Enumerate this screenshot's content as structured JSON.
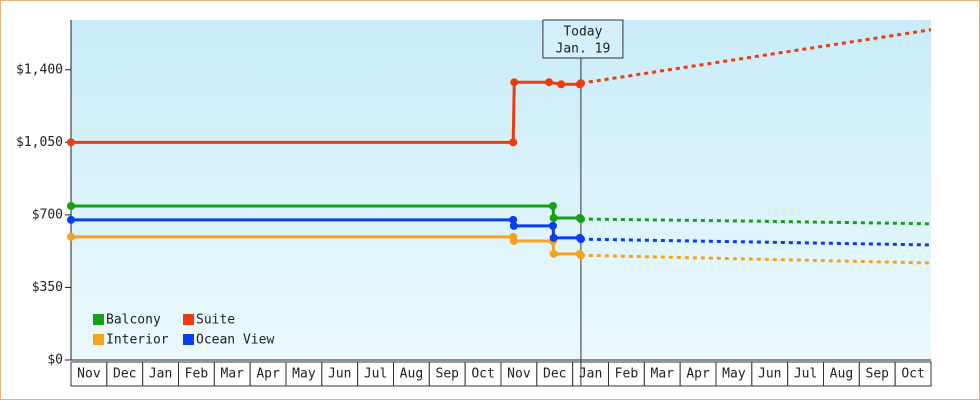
{
  "chart_data": {
    "type": "line",
    "categories": [
      "Nov",
      "Dec",
      "Jan",
      "Feb",
      "Mar",
      "Apr",
      "May",
      "Jun",
      "Jul",
      "Aug",
      "Sep",
      "Oct",
      "Nov",
      "Dec",
      "Jan",
      "Feb",
      "Mar",
      "Apr",
      "May",
      "Jun",
      "Jul",
      "Aug",
      "Sep",
      "Oct"
    ],
    "xlim": [
      0,
      24
    ],
    "ylim": [
      0,
      1640
    ],
    "yticks": [
      {
        "value": 0,
        "label": "$0"
      },
      {
        "value": 350,
        "label": "$350"
      },
      {
        "value": 700,
        "label": "$700"
      },
      {
        "value": 1050,
        "label": "$1,050"
      },
      {
        "value": 1400,
        "label": "$1,400"
      }
    ],
    "annotation": {
      "lines": [
        "Today",
        "Jan. 19"
      ],
      "x": 14.23
    },
    "series": [
      {
        "name": "Balcony",
        "color": "#16a016",
        "x": [
          0,
          13.45,
          13.47,
          14.2,
          14.23
        ],
        "values": [
          743,
          743,
          685,
          685,
          680
        ],
        "forecast": {
          "x": [
            14.23,
            19,
            24
          ],
          "values": [
            680,
            670,
            657
          ]
        }
      },
      {
        "name": "Suite",
        "color": "#f03c0c",
        "x": [
          0,
          12.34,
          12.37,
          13.34,
          13.68,
          14.2,
          14.23
        ],
        "values": [
          1050,
          1050,
          1340,
          1340,
          1330,
          1330,
          1335
        ],
        "forecast": {
          "x": [
            14.23,
            24
          ],
          "values": [
            1335,
            1593
          ]
        }
      },
      {
        "name": "Interior",
        "color": "#f6a21e",
        "x": [
          0,
          12.34,
          12.36,
          13.45,
          13.47,
          14.2,
          14.23
        ],
        "values": [
          594,
          594,
          574,
          574,
          512,
          512,
          505
        ],
        "forecast": {
          "x": [
            14.23,
            24
          ],
          "values": [
            505,
            468
          ]
        }
      },
      {
        "name": "Ocean View",
        "color": "#0a3cf0",
        "x": [
          0,
          12.34,
          12.36,
          13.45,
          13.47,
          14.2,
          14.23
        ],
        "values": [
          676,
          676,
          647,
          647,
          589,
          589,
          583
        ],
        "forecast": {
          "x": [
            14.23,
            24
          ],
          "values": [
            583,
            555
          ]
        }
      }
    ]
  }
}
